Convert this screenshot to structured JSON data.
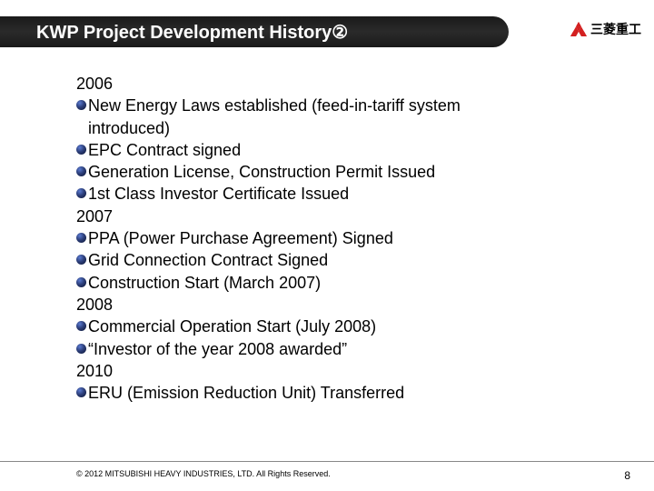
{
  "header": {
    "title": "KWP Project Development History②",
    "logo_text": "三菱重工"
  },
  "sections": [
    {
      "year": "2006",
      "items": [
        "New Energy Laws established (feed-in-tariff system introduced)",
        "EPC Contract signed",
        "Generation License, Construction Permit Issued",
        "1st Class Investor Certificate Issued"
      ]
    },
    {
      "year": "2007",
      "items": [
        "PPA (Power Purchase Agreement) Signed",
        "Grid Connection Contract Signed",
        "Construction Start (March 2007)"
      ]
    },
    {
      "year": "2008",
      "items": [
        "Commercial Operation Start (July 2008)",
        "“Investor of the year 2008 awarded”"
      ]
    },
    {
      "year": "2010",
      "items": [
        "ERU (Emission Reduction Unit) Transferred"
      ]
    }
  ],
  "footer": {
    "copyright": "© 2012 MITSUBISHI HEAVY INDUSTRIES, LTD.  All Rights Reserved.",
    "page": "8"
  }
}
